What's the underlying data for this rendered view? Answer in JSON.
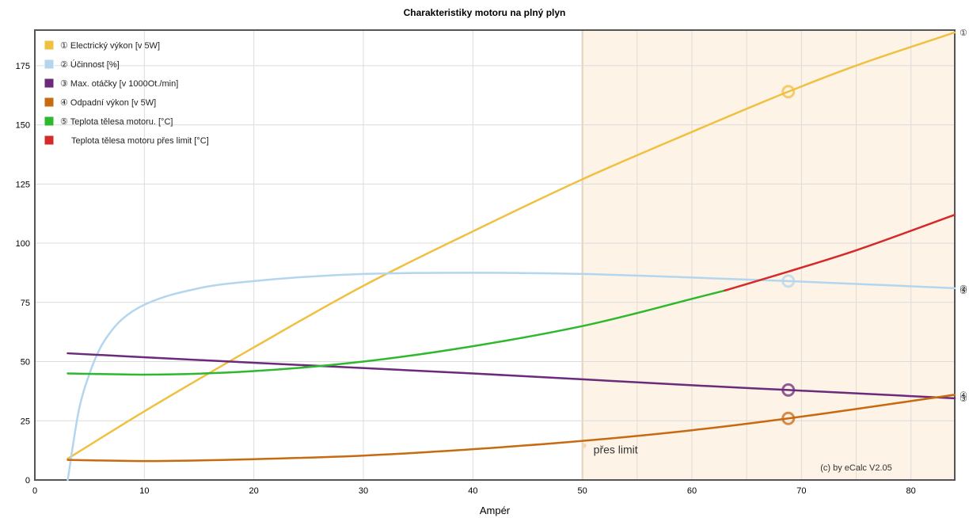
{
  "chart_data": {
    "type": "line",
    "title": "Charakteristiky motoru na plný plyn",
    "xlabel": "Ampér",
    "ylabel": "",
    "xlim": [
      0,
      84
    ],
    "ylim": [
      0,
      190
    ],
    "xticks": [
      0,
      10,
      20,
      30,
      40,
      50,
      60,
      70,
      80
    ],
    "yticks": [
      0,
      25,
      50,
      75,
      100,
      125,
      150,
      175
    ],
    "grid": true,
    "legend_position": "top-left",
    "limit_region": {
      "x_start": 50,
      "x_end": 84,
      "label": "přes limit",
      "color": "#fdf3e6",
      "edge_color": "#e8c89a"
    },
    "operating_point_x": 68.8,
    "credit": "(c) by eCalc  V2.05",
    "series": [
      {
        "name": "Electrický výkon [v 5W]",
        "legend_marker": "①",
        "end_marker": "①",
        "color": "#f0c040",
        "x": [
          3,
          10,
          20,
          30,
          40,
          50,
          60,
          68.8,
          75,
          84
        ],
        "y": [
          9,
          29,
          56,
          82,
          105,
          127,
          147,
          164,
          175,
          189
        ]
      },
      {
        "name": "Účinnost [%]",
        "legend_marker": "②",
        "end_marker": "②",
        "color": "#b3d6ee",
        "x": [
          3,
          4,
          5,
          6,
          7,
          8,
          10,
          15,
          20,
          30,
          40,
          50,
          60,
          68.8,
          84
        ],
        "y": [
          0,
          29,
          45,
          56,
          63,
          68,
          74,
          81,
          84,
          87,
          87.5,
          87,
          85.5,
          84,
          81
        ]
      },
      {
        "name": "Max. otáčky [v 1000Ot./min]",
        "legend_marker": "③",
        "end_marker": "③",
        "color": "#6b2a7a",
        "x": [
          3,
          20,
          40,
          60,
          68.8,
          84
        ],
        "y": [
          53.5,
          49.5,
          45,
          40,
          38,
          34.5
        ]
      },
      {
        "name": "Odpadní výkon [v 5W]",
        "legend_marker": "④",
        "end_marker": "④",
        "color": "#c76a10",
        "x": [
          3,
          10,
          20,
          30,
          40,
          50,
          60,
          68.8,
          84
        ],
        "y": [
          8.5,
          8,
          8.8,
          10.3,
          13,
          16.5,
          21,
          26,
          36
        ]
      },
      {
        "name": "Teplota tělesa motoru. [°C]",
        "legend_marker": "⑤",
        "end_marker": "⑤",
        "color": "#2eb82e",
        "x": [
          3,
          10,
          20,
          30,
          40,
          50,
          55,
          60,
          63
        ],
        "y": [
          45,
          44.5,
          46,
          50,
          56.5,
          65,
          70.5,
          76.5,
          80
        ]
      },
      {
        "name": "Teplota tělesa motoru přes limit [°C]",
        "legend_marker": "",
        "end_marker": "",
        "color": "#d42a2a",
        "x": [
          63,
          68.8,
          75,
          84
        ],
        "y": [
          80,
          88,
          97,
          112
        ]
      }
    ]
  }
}
